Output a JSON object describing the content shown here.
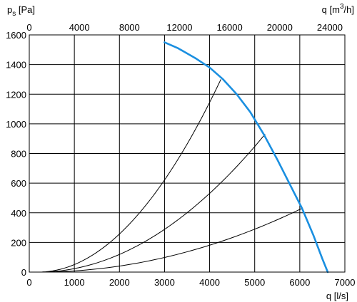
{
  "chart_data": {
    "type": "line",
    "title": "",
    "y_label": {
      "main": "p",
      "subscript": "s",
      "unit": " [Pa]"
    },
    "x_bottom_label": "q [l/s]",
    "x_top_label": {
      "prefix": "q [m",
      "superscript": "3",
      "suffix": "/h]"
    },
    "x_bottom": {
      "min": 0,
      "max": 7000,
      "ticks": [
        0,
        1000,
        2000,
        3000,
        4000,
        5000,
        6000,
        7000
      ]
    },
    "x_top": {
      "min": 0,
      "max": 25200,
      "ticks": [
        0,
        4000,
        8000,
        12000,
        16000,
        20000,
        24000
      ]
    },
    "y": {
      "min": 0,
      "max": 1600,
      "ticks": [
        0,
        200,
        400,
        600,
        800,
        1000,
        1200,
        1400,
        1600
      ]
    },
    "grid": true,
    "fan_curve": {
      "color": "#1a8fe0",
      "points": [
        [
          3000,
          1550
        ],
        [
          3300,
          1510
        ],
        [
          3700,
          1440
        ],
        [
          4000,
          1380
        ],
        [
          4300,
          1300
        ],
        [
          4600,
          1200
        ],
        [
          4900,
          1080
        ],
        [
          5200,
          930
        ],
        [
          5500,
          760
        ],
        [
          5800,
          580
        ],
        [
          6050,
          430
        ],
        [
          6300,
          250
        ],
        [
          6500,
          90
        ],
        [
          6620,
          0
        ]
      ]
    },
    "system_curves": {
      "color": "#000000",
      "series": [
        {
          "x": [
            200,
            4250
          ],
          "y": [
            0,
            1300
          ]
        },
        {
          "x": [
            200,
            5230
          ],
          "y": [
            0,
            930
          ]
        },
        {
          "x": [
            200,
            6050
          ],
          "y": [
            0,
            430
          ]
        }
      ]
    }
  }
}
